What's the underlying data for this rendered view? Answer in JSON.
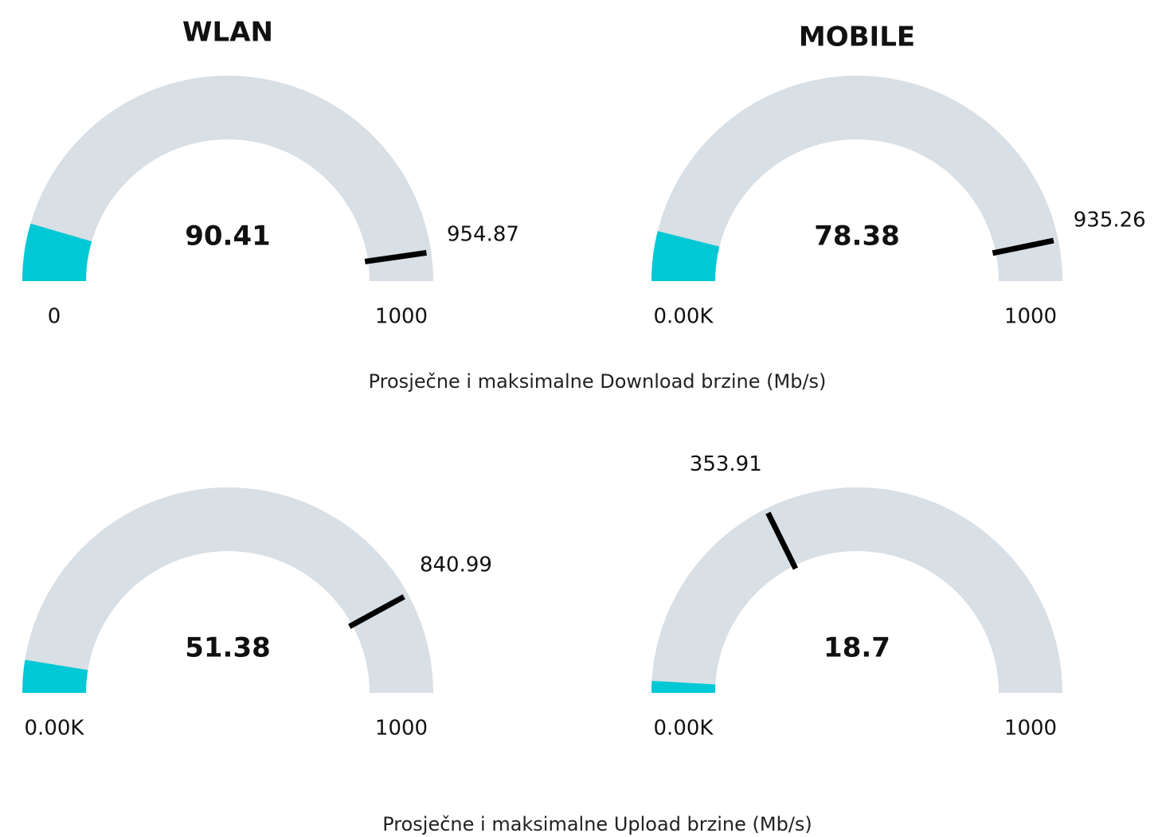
{
  "chart_data": [
    {
      "type": "gauge",
      "title": "WLAN",
      "value": 90.41,
      "marker": 954.87,
      "ylim": [
        0,
        1000
      ],
      "yticks": [
        0,
        1000
      ],
      "color": "#00c8d4",
      "track_color": "#d8dfe5",
      "marker_color": "#000000"
    },
    {
      "type": "gauge",
      "title": "MOBILE",
      "value": 78.38,
      "marker": 935.26,
      "ylim": [
        0,
        1000
      ],
      "yticks": [
        {
          "value": 0,
          "label": "0.00K"
        },
        1000
      ],
      "color": "#00c8d4",
      "track_color": "#d8dfe5",
      "marker_color": "#000000"
    },
    {
      "type": "gauge",
      "value": 51.38,
      "marker": 840.99,
      "ylim": [
        0,
        1000
      ],
      "yticks": [
        {
          "value": 0,
          "label": "0.00K"
        },
        1000
      ],
      "color": "#00c8d4",
      "track_color": "#d8dfe5",
      "marker_color": "#000000"
    },
    {
      "type": "gauge",
      "value": 18.7,
      "marker": 353.91,
      "ylim": [
        0,
        1000
      ],
      "yticks": [
        {
          "value": 0,
          "label": "0.00K"
        },
        1000
      ],
      "color": "#00c8d4",
      "track_color": "#d8dfe5",
      "marker_color": "#000000"
    }
  ],
  "captions": [
    "Prosječne i maksimalne Download brzine (Mb/s)",
    "Prosječne i maksimalne Upload brzine (Mb/s)"
  ]
}
